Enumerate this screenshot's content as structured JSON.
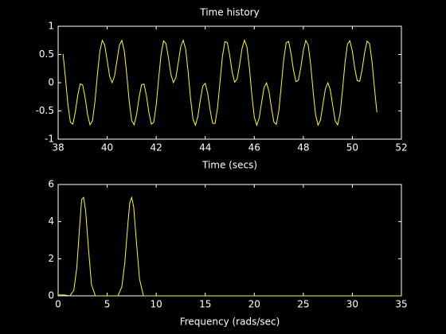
{
  "chart_data": [
    {
      "type": "line",
      "title": "Time history",
      "xlabel": "Time (secs)",
      "color": "#ffff00",
      "xlim": [
        38,
        52
      ],
      "xticks": [
        38,
        40,
        42,
        44,
        46,
        48,
        50,
        52
      ],
      "ylim": [
        -1,
        1
      ],
      "yticks": [
        -1,
        -0.5,
        0,
        0.5,
        1
      ],
      "grid": false,
      "x": [
        38.2,
        38.3,
        38.4,
        38.5,
        38.6,
        38.7,
        38.8,
        38.9,
        39.0,
        39.1,
        39.2,
        39.3,
        39.4,
        39.5,
        39.6,
        39.7,
        39.8,
        39.9,
        40.0,
        40.1,
        40.2,
        40.3,
        40.4,
        40.5,
        40.6,
        40.7,
        40.8,
        40.9,
        41.0,
        41.1,
        41.2,
        41.3,
        41.4,
        41.5,
        41.6,
        41.7,
        41.8,
        41.9,
        42.0,
        42.1,
        42.2,
        42.3,
        42.4,
        42.5,
        42.6,
        42.7,
        42.8,
        42.9,
        43.0,
        43.1,
        43.2,
        43.3,
        43.4,
        43.5,
        43.6,
        43.7,
        43.8,
        43.9,
        44.0,
        44.1,
        44.2,
        44.3,
        44.4,
        44.5,
        44.6,
        44.7,
        44.8,
        44.9,
        45.0,
        45.1,
        45.2,
        45.3,
        45.4,
        45.5,
        45.6,
        45.7,
        45.8,
        45.9,
        46.0,
        46.1,
        46.2,
        46.3,
        46.4,
        46.5,
        46.6,
        46.7,
        46.8,
        46.9,
        47.0,
        47.1,
        47.2,
        47.3,
        47.4,
        47.5,
        47.6,
        47.7,
        47.8,
        47.9,
        48.0,
        48.1,
        48.2,
        48.3,
        48.4,
        48.5,
        48.6,
        48.7,
        48.8,
        48.9,
        49.0,
        49.1,
        49.2,
        49.3,
        49.4,
        49.5,
        49.6,
        49.7,
        49.8,
        49.9,
        50.0,
        50.1,
        50.2,
        50.3,
        50.4,
        50.5,
        50.6,
        50.7,
        50.8,
        50.9,
        51.0
      ],
      "values": [
        0.511,
        0.074,
        -0.394,
        -0.7,
        -0.734,
        -0.523,
        -0.22,
        -0.021,
        -0.038,
        -0.263,
        -0.562,
        -0.746,
        -0.675,
        -0.339,
        0.138,
        0.557,
        0.75,
        0.666,
        0.395,
        0.116,
        0,
        0.116,
        0.395,
        0.666,
        0.75,
        0.557,
        0.138,
        -0.338,
        -0.674,
        -0.745,
        -0.562,
        -0.264,
        -0.039,
        -0.023,
        -0.226,
        -0.526,
        -0.734,
        -0.7,
        -0.395,
        0.074,
        0.511,
        0.741,
        0.691,
        0.436,
        0.147,
        0.002,
        0.089,
        0.355,
        0.638,
        0.754,
        0.598,
        0.201,
        -0.279,
        -0.644,
        -0.752,
        -0.597,
        -0.303,
        -0.058,
        -0.011,
        -0.189,
        -0.487,
        -0.718,
        -0.721,
        -0.448,
        0.009,
        0.462,
        0.726,
        0.713,
        0.476,
        0.18,
        0.009,
        0.064,
        0.314,
        0.606,
        0.754,
        0.634,
        0.263,
        -0.218,
        -0.608,
        -0.754,
        -0.63,
        -0.344,
        -0.082,
        -0.003,
        -0.156,
        -0.447,
        -0.697,
        -0.738,
        -0.499,
        -0.056,
        0.409,
        0.707,
        0.73,
        0.514,
        0.216,
        0.019,
        0.044,
        0.274,
        0.572,
        0.748,
        0.667,
        0.322,
        -0.155,
        -0.568,
        -0.751,
        -0.659,
        -0.384,
        -0.109,
        0,
        -0.124,
        -0.406,
        -0.674,
        -0.748,
        -0.545,
        -0.121,
        0.353,
        0.682,
        0.743,
        0.552,
        0.252,
        0.034,
        0.026,
        0.236,
        0.535,
        0.737,
        0.694,
        0.38,
        -0.091,
        -0.524
      ]
    },
    {
      "type": "line",
      "xlabel": "Frequency (rads/sec)",
      "color": "#ffff00",
      "xlim": [
        0,
        35
      ],
      "xticks": [
        0,
        5,
        10,
        15,
        20,
        25,
        30,
        35
      ],
      "ylim": [
        0,
        6
      ],
      "yticks": [
        0,
        2,
        4,
        6
      ],
      "grid": false,
      "x": [
        0,
        0.6,
        1.2,
        1.6,
        1.9,
        2.2,
        2.4,
        2.6,
        2.8,
        3.1,
        3.4,
        3.8,
        6.1,
        6.5,
        6.8,
        7.1,
        7.3,
        7.5,
        7.7,
        8.0,
        8.3,
        8.7,
        35
      ],
      "values": [
        0.05,
        0.05,
        0,
        0.3,
        1.5,
        3.8,
        5.2,
        5.3,
        4.6,
        2.5,
        0.6,
        0,
        0,
        0.5,
        1.8,
        3.8,
        5.0,
        5.3,
        4.8,
        2.8,
        0.9,
        0,
        0
      ]
    }
  ]
}
